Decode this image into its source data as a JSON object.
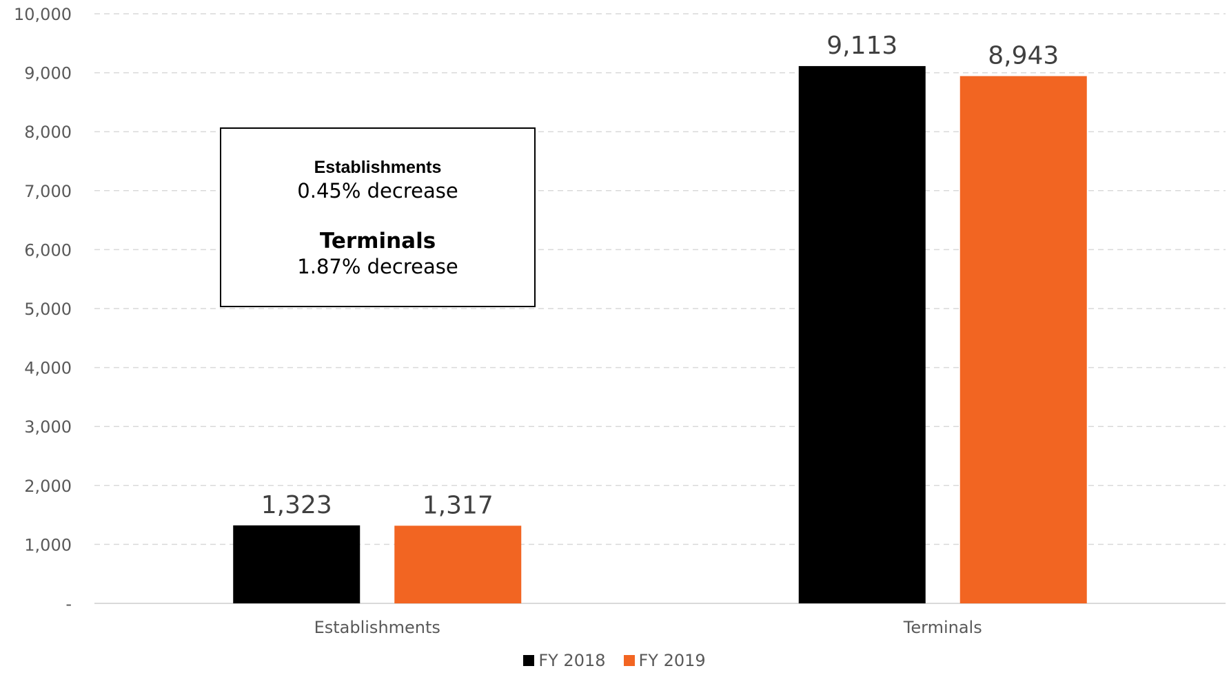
{
  "colors": {
    "fy2018": "#000000",
    "fy2019": "#f26522",
    "grid": "#d9d9d9",
    "axis": "#d9d9d9"
  },
  "chart_data": {
    "type": "bar",
    "categories": [
      "Establishments",
      "Terminals"
    ],
    "series": [
      {
        "name": "FY 2018",
        "values": [
          1323,
          9113
        ],
        "labels": [
          "1,323",
          "9,113"
        ]
      },
      {
        "name": "FY 2019",
        "values": [
          1317,
          8943
        ],
        "labels": [
          "1,317",
          "8,943"
        ]
      }
    ],
    "ylim": [
      0,
      10000
    ],
    "yticks": [
      0,
      1000,
      2000,
      3000,
      4000,
      5000,
      6000,
      7000,
      8000,
      9000,
      10000
    ],
    "ytick_labels": [
      "-",
      "1,000",
      "2,000",
      "3,000",
      "4,000",
      "5,000",
      "6,000",
      "7,000",
      "8,000",
      "9,000",
      "10,000"
    ],
    "grid": true,
    "legend_position": "bottom"
  },
  "annotation": {
    "heading1": "Establishments",
    "text1": "0.45% decrease",
    "heading2": "Terminals",
    "text2": "1.87% decrease"
  }
}
